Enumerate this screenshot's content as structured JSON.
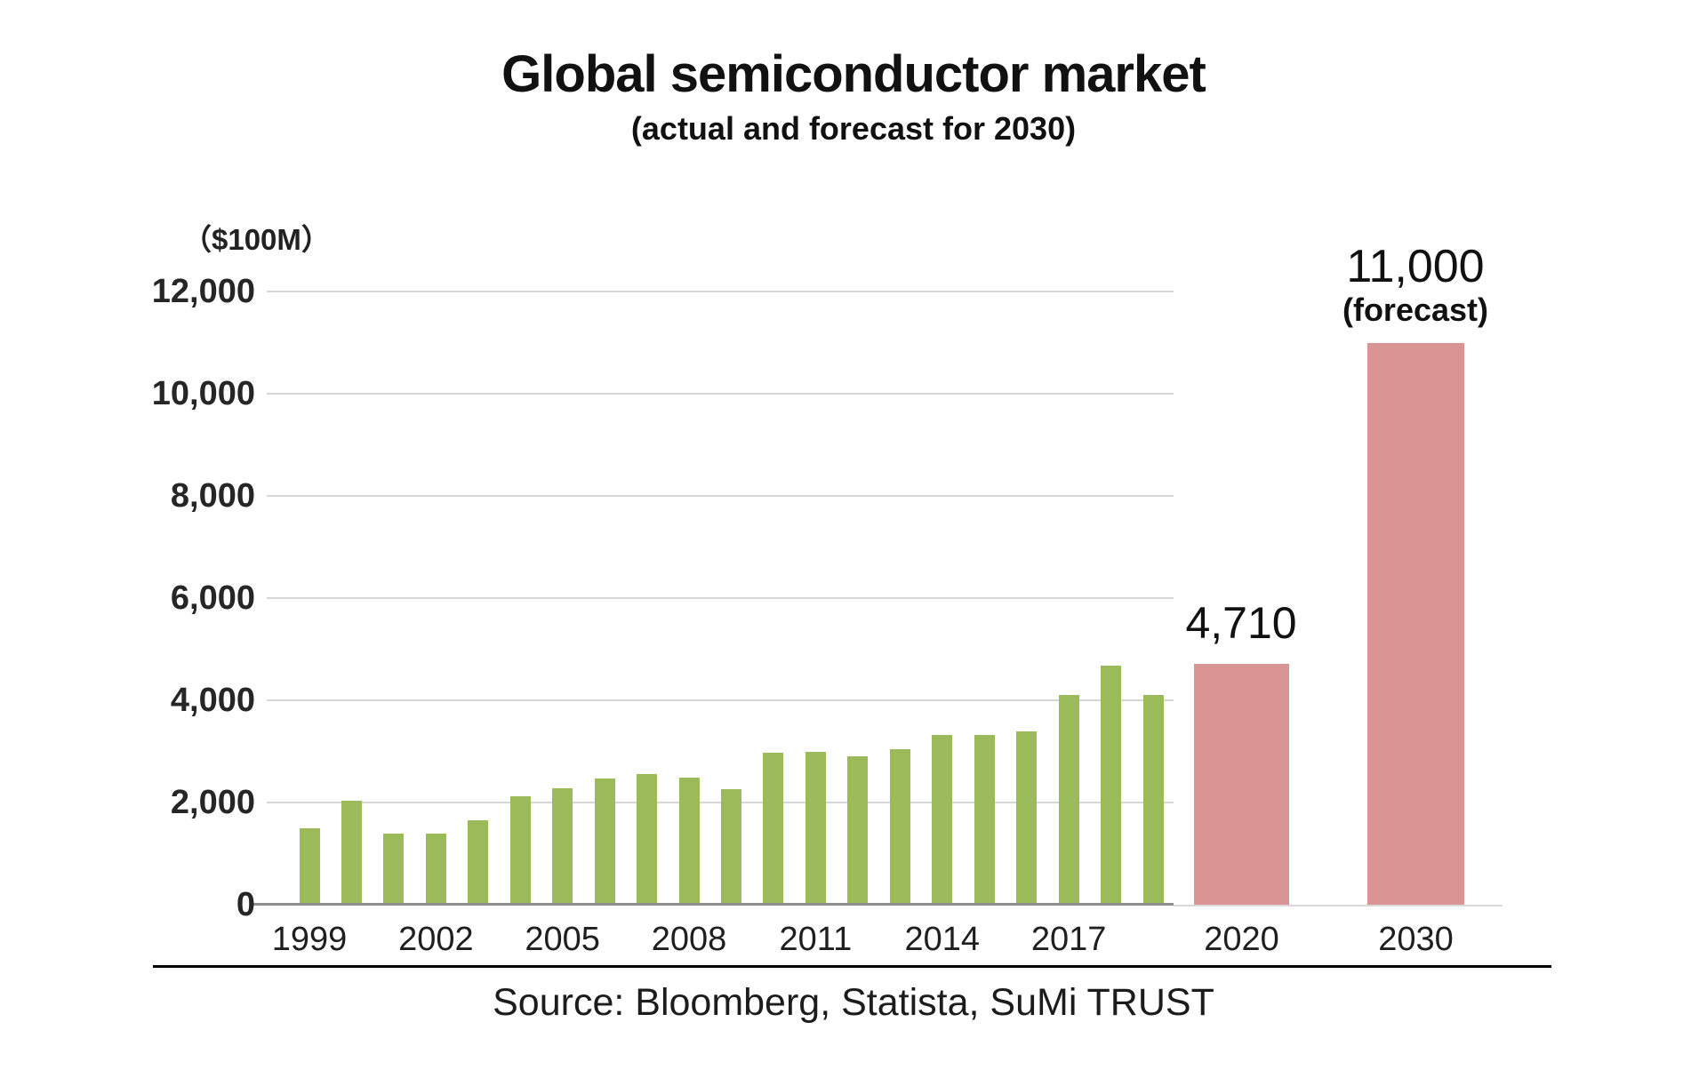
{
  "title": "Global semiconductor market",
  "subtitle": "(actual and forecast for 2030)",
  "unit_label": "（$100M）",
  "source": "Source: Bloomberg, Statista, SuMi TRUST",
  "colors": {
    "actual_bar": "#9bba59",
    "forecast_bar": "#d99593",
    "gridline": "#d6d6d6",
    "axis_dark": "#8f8f8f",
    "axis_light": "#d9d9d9"
  },
  "chart_data": {
    "type": "bar",
    "title": "Global semiconductor market",
    "subtitle": "(actual and forecast for 2030)",
    "ylabel": "（$100M）",
    "xlabel": "",
    "ylim": [
      0,
      12000
    ],
    "grid": "horizontal, every 2000, gridlines span actual-data plot area only",
    "legend": "none",
    "yticks": [
      {
        "value": 12000,
        "label": "12,000"
      },
      {
        "value": 10000,
        "label": "10,000"
      },
      {
        "value": 8000,
        "label": "8,000"
      },
      {
        "value": 6000,
        "label": "6,000"
      },
      {
        "value": 4000,
        "label": "4,000"
      },
      {
        "value": 2000,
        "label": "2,000"
      },
      {
        "value": 0,
        "label": "0"
      }
    ],
    "series": [
      {
        "name": "Actual",
        "color": "#9bba59",
        "x": [
          1999,
          2000,
          2001,
          2002,
          2003,
          2004,
          2005,
          2006,
          2007,
          2008,
          2009,
          2010,
          2011,
          2012,
          2013,
          2014,
          2015,
          2016,
          2017,
          2018,
          2019
        ],
        "values": [
          1490,
          2040,
          1390,
          1400,
          1650,
          2130,
          2270,
          2470,
          2550,
          2480,
          2260,
          2980,
          2990,
          2900,
          3050,
          3330,
          3330,
          3390,
          4100,
          4680,
          4100
        ]
      },
      {
        "name": "Forecast",
        "color": "#d99593",
        "x": [
          2020,
          2030
        ],
        "values": [
          4710,
          11000
        ]
      }
    ],
    "xticks": [
      "1999",
      "2002",
      "2005",
      "2008",
      "2011",
      "2014",
      "2017",
      "2020",
      "2030"
    ],
    "value_labels": {
      "y2020": "4,710",
      "y2030": "11,000",
      "y2030_sub": "(forecast)"
    }
  }
}
